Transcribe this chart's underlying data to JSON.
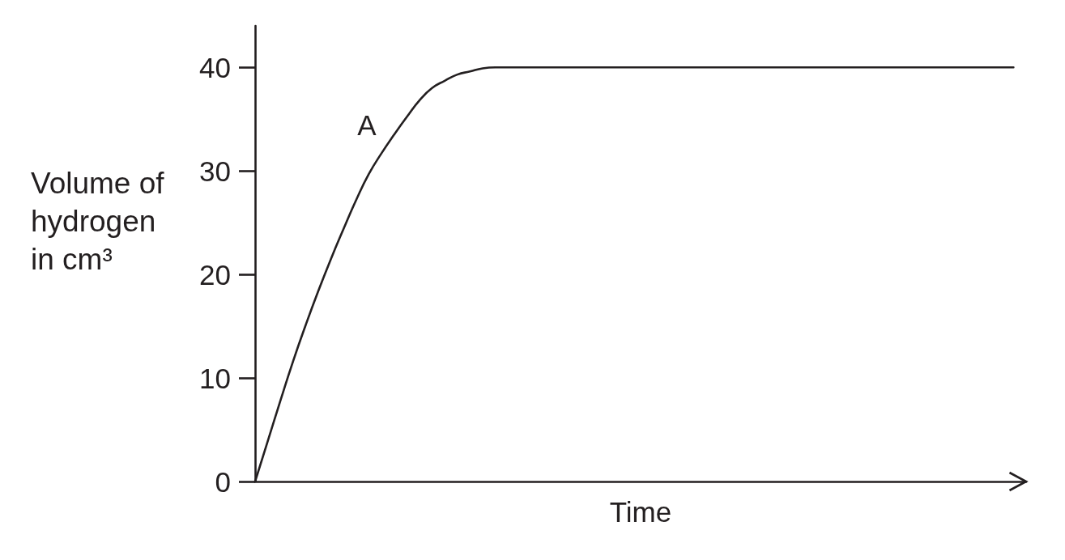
{
  "chart_data": {
    "type": "line",
    "xlabel": "Time",
    "ylabel": "Volume of hydrogen in cm³",
    "categories": [
      null,
      null,
      null,
      null,
      null,
      null,
      null,
      null,
      null,
      null,
      null,
      null,
      null,
      null,
      null,
      null,
      null,
      null,
      null,
      null,
      null,
      null,
      null,
      null,
      null,
      null,
      null,
      null,
      null,
      null,
      null,
      null,
      null,
      null,
      null,
      null,
      null,
      null,
      null,
      null,
      null,
      null,
      null,
      null,
      null,
      null,
      null,
      null,
      null,
      null,
      null,
      null,
      null,
      null,
      null,
      null,
      null,
      null,
      null,
      null,
      null,
      null
    ],
    "series": [
      {
        "name": "A",
        "color": "#231f20",
        "values": [
          0,
          3.9,
          7.8,
          11.6,
          15.1,
          18.4,
          21.5,
          24.4,
          27.2,
          29.7,
          31.7,
          33.5,
          35.2,
          36.8,
          38.0,
          38.7,
          39.3,
          39.6,
          39.9,
          40,
          40,
          40,
          40,
          40,
          40,
          40,
          40,
          40,
          40,
          40,
          40,
          40,
          40,
          40,
          40,
          40,
          40,
          40,
          40,
          40,
          40,
          40,
          40,
          40,
          40,
          40,
          40,
          40,
          40,
          40,
          40,
          40,
          40,
          40,
          40,
          40,
          40,
          40,
          40,
          40,
          40,
          null
        ]
      }
    ],
    "ylim": [
      0,
      44
    ],
    "yticks": [
      0,
      10,
      20,
      30,
      40
    ],
    "tick_labels": "y",
    "marker": "none",
    "line_style": "solid"
  }
}
